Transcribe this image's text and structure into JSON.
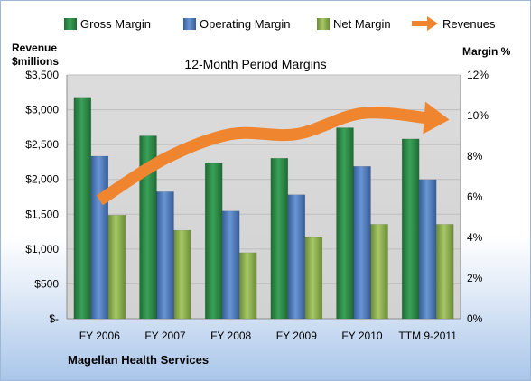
{
  "chart_data": {
    "type": "bar",
    "title": "12-Month Period Margins",
    "company": "Magellan Health Services",
    "left_axis_label_line1": "Revenue",
    "left_axis_label_line2": "$millions",
    "right_axis_label": "Margin %",
    "categories": [
      "FY 2006",
      "FY 2007",
      "FY 2008",
      "FY 2009",
      "FY 2010",
      "TTM 9-2011"
    ],
    "left_ticks": [
      "$-",
      "$500",
      "$1,000",
      "$1,500",
      "$2,000",
      "$2,500",
      "$3,000",
      "$3,500"
    ],
    "right_ticks": [
      "0%",
      "2%",
      "4%",
      "6%",
      "8%",
      "10%",
      "12%"
    ],
    "ylim_left": [
      0,
      3500
    ],
    "ylim_right": [
      0,
      12
    ],
    "series": [
      {
        "name": "Gross Margin",
        "axis": "right",
        "color": "#2e8b48",
        "values": [
          10.9,
          9.0,
          7.65,
          7.9,
          9.4,
          8.85
        ]
      },
      {
        "name": "Operating Margin",
        "axis": "right",
        "color": "#4f7bbd",
        "values": [
          8.0,
          6.25,
          5.3,
          6.1,
          7.5,
          6.85
        ]
      },
      {
        "name": "Net Margin",
        "axis": "right",
        "color": "#8fb24f",
        "values": [
          5.1,
          4.35,
          3.25,
          4.0,
          4.65,
          4.65
        ]
      },
      {
        "name": "Revenues",
        "axis": "left",
        "color": "#f0852f",
        "style": "arrow",
        "values": [
          1700,
          2300,
          2650,
          2650,
          2950,
          2880
        ]
      }
    ],
    "legend_position": "top",
    "plot_background": "#d9d9d9",
    "grid": true
  }
}
